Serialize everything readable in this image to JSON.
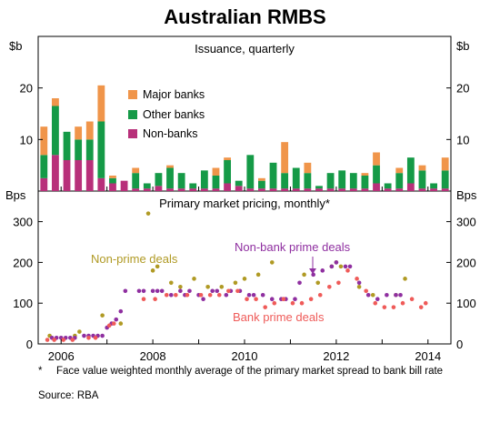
{
  "title": "Australian RMBS",
  "footnote_marker": "*",
  "footnote": "Face value weighted monthly average of the primary market spread to bank bill rate",
  "source": "Source: RBA",
  "colors": {
    "major_banks": "#f0954a",
    "other_banks": "#159a47",
    "non_banks": "#b8307a",
    "non_prime": "#b09a24",
    "nonbank_prime": "#8f2fa0",
    "bank_prime": "#ef5b59"
  },
  "chart_data": [
    {
      "type": "bar",
      "stacked": true,
      "title": "Issuance, quarterly",
      "ylabel_left": "$b",
      "ylabel_right": "$b",
      "ylim": [
        0,
        30
      ],
      "yticks": [
        10,
        20
      ],
      "legend_position": "middle",
      "series": [
        {
          "name": "Major banks",
          "color_key": "major_banks",
          "values": [
            5.5,
            1.5,
            0,
            2.5,
            3.5,
            7,
            0.5,
            0,
            1,
            0,
            0,
            0.5,
            0,
            0,
            0,
            1.5,
            0.5,
            0,
            0,
            0.5,
            0,
            6,
            0,
            2,
            0,
            0,
            0,
            0,
            0.5,
            2.5,
            0,
            1,
            0,
            1,
            0,
            2.5
          ]
        },
        {
          "name": "Other banks",
          "color_key": "other_banks",
          "values": [
            4.5,
            9.5,
            5.5,
            4,
            4,
            11,
            1,
            0,
            3,
            1,
            2.5,
            4,
            3,
            1,
            3.5,
            2.5,
            4.5,
            1,
            6.5,
            1.5,
            5,
            3,
            4,
            3,
            0.5,
            3,
            3.5,
            3,
            2.5,
            3.5,
            1,
            3,
            5,
            3.5,
            1,
            3.5
          ]
        },
        {
          "name": "Non-banks",
          "color_key": "non_banks",
          "values": [
            2.5,
            7,
            6,
            6,
            6,
            2.5,
            1.5,
            2,
            0.5,
            0.5,
            1,
            0.5,
            0.5,
            0.5,
            0.5,
            0.5,
            1.5,
            1,
            0.5,
            0.5,
            0.5,
            0.5,
            0.5,
            0.5,
            0.5,
            0.5,
            0.5,
            0.5,
            0.5,
            1.5,
            0.5,
            0.5,
            1.5,
            0.5,
            0.5,
            0.5
          ]
        }
      ],
      "x_start_year": 2005.625,
      "x_step_years": 0.25
    },
    {
      "type": "scatter",
      "title": "Primary market pricing, monthly*",
      "ylabel_left": "Bps",
      "ylabel_right": "Bps",
      "ylim": [
        0,
        375
      ],
      "yticks": [
        0,
        100,
        200,
        300
      ],
      "xlim": [
        2005.5,
        2014.5
      ],
      "xticks": [
        "2006",
        "2008",
        "2010",
        "2012",
        "2014"
      ],
      "xtick_values": [
        2006,
        2008,
        2010,
        2012,
        2014
      ],
      "annotations": [
        "Non-prime deals",
        "Non-bank prime deals",
        "Bank prime deals"
      ],
      "series": [
        {
          "name": "Non-prime deals",
          "color_key": "non_prime",
          "x": [
            2005.75,
            2006.3,
            2006.4,
            2006.9,
            2007.3,
            2007.9,
            2008.0,
            2008.1,
            2008.4,
            2008.6,
            2008.9,
            2009.2,
            2009.5,
            2009.8,
            2010.0,
            2010.3,
            2010.6,
            2011.3,
            2011.6,
            2011.9,
            2012.0,
            2012.1,
            2012.5,
            2012.8,
            2013.3,
            2013.5
          ],
          "y": [
            20,
            20,
            30,
            70,
            50,
            320,
            180,
            190,
            150,
            140,
            160,
            140,
            140,
            150,
            160,
            170,
            200,
            170,
            150,
            190,
            200,
            190,
            140,
            120,
            120,
            160
          ]
        },
        {
          "name": "Non-bank prime deals",
          "color_key": "nonbank_prime",
          "x": [
            2005.8,
            2005.9,
            2006.0,
            2006.1,
            2006.2,
            2006.3,
            2006.5,
            2006.6,
            2006.7,
            2006.8,
            2006.9,
            2007.0,
            2007.1,
            2007.2,
            2007.3,
            2007.4,
            2007.7,
            2007.8,
            2008.0,
            2008.1,
            2008.2,
            2008.4,
            2008.6,
            2008.7,
            2008.8,
            2009.0,
            2009.1,
            2009.3,
            2009.4,
            2009.6,
            2009.7,
            2009.9,
            2010.1,
            2010.2,
            2010.4,
            2010.6,
            2010.8,
            2010.9,
            2011.1,
            2011.2,
            2011.5,
            2011.7,
            2011.9,
            2012.0,
            2012.2,
            2012.3,
            2012.5,
            2012.7,
            2012.9,
            2013.1,
            2013.3,
            2013.4
          ],
          "y": [
            15,
            15,
            15,
            15,
            15,
            15,
            20,
            20,
            20,
            20,
            20,
            40,
            50,
            60,
            80,
            130,
            130,
            130,
            130,
            130,
            130,
            120,
            130,
            120,
            130,
            120,
            110,
            130,
            130,
            120,
            130,
            130,
            120,
            120,
            120,
            110,
            110,
            110,
            110,
            150,
            170,
            180,
            190,
            200,
            190,
            190,
            150,
            120,
            110,
            120,
            120,
            120
          ]
        },
        {
          "name": "Bank prime deals",
          "color_key": "bank_prime",
          "x": [
            2005.7,
            2005.85,
            2006.05,
            2006.25,
            2006.6,
            2006.75,
            2007.05,
            2007.15,
            2007.8,
            2008.05,
            2008.3,
            2008.5,
            2008.75,
            2009.05,
            2009.25,
            2009.45,
            2009.65,
            2009.85,
            2010.05,
            2010.25,
            2010.45,
            2010.65,
            2010.85,
            2011.05,
            2011.25,
            2011.45,
            2011.65,
            2011.85,
            2012.05,
            2012.25,
            2012.45,
            2012.65,
            2012.85,
            2013.05,
            2013.25,
            2013.45,
            2013.65,
            2013.85,
            2013.95
          ],
          "y": [
            10,
            10,
            10,
            10,
            15,
            15,
            45,
            50,
            110,
            110,
            120,
            120,
            120,
            120,
            120,
            120,
            130,
            130,
            110,
            110,
            90,
            100,
            110,
            100,
            100,
            110,
            120,
            140,
            150,
            180,
            160,
            130,
            100,
            90,
            90,
            100,
            110,
            90,
            100
          ]
        }
      ]
    }
  ],
  "legend": {
    "entries": [
      "Major banks",
      "Other banks",
      "Non-banks"
    ]
  }
}
